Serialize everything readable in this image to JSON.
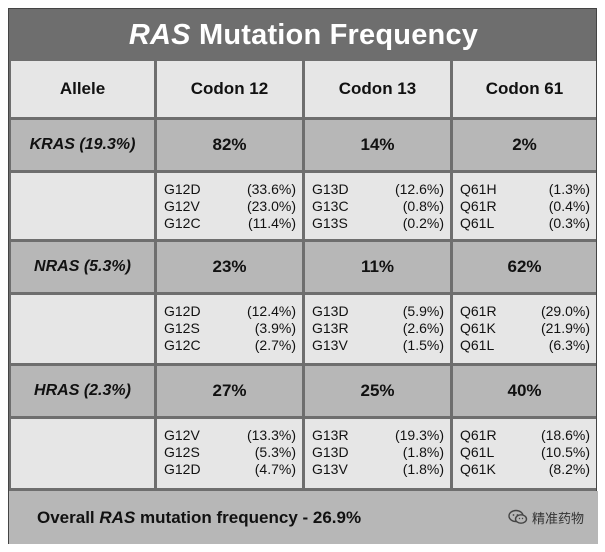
{
  "title": {
    "gene": "RAS",
    "rest": "Mutation Frequency"
  },
  "header": {
    "allele": "Allele",
    "codon12": "Codon 12",
    "codon13": "Codon 13",
    "codon61": "Codon  61"
  },
  "genes": [
    {
      "label": "KRAS (19.3%)",
      "codon12": {
        "pct": "82%",
        "mutations": [
          {
            "name": "G12D",
            "freq": "(33.6%)"
          },
          {
            "name": "G12V",
            "freq": "(23.0%)"
          },
          {
            "name": "G12C",
            "freq": "(11.4%)"
          }
        ]
      },
      "codon13": {
        "pct": "14%",
        "mutations": [
          {
            "name": "G13D",
            "freq": "(12.6%)"
          },
          {
            "name": "G13C",
            "freq": "(0.8%)"
          },
          {
            "name": "G13S",
            "freq": "(0.2%)"
          }
        ]
      },
      "codon61": {
        "pct": "2%",
        "mutations": [
          {
            "name": "Q61H",
            "freq": "(1.3%)"
          },
          {
            "name": "Q61R",
            "freq": "(0.4%)"
          },
          {
            "name": "Q61L",
            "freq": "(0.3%)"
          }
        ]
      }
    },
    {
      "label": "NRAS (5.3%)",
      "codon12": {
        "pct": "23%",
        "mutations": [
          {
            "name": "G12D",
            "freq": "(12.4%)"
          },
          {
            "name": "G12S",
            "freq": "(3.9%)"
          },
          {
            "name": "G12C",
            "freq": "(2.7%)"
          }
        ]
      },
      "codon13": {
        "pct": "11%",
        "mutations": [
          {
            "name": "G13D",
            "freq": "(5.9%)"
          },
          {
            "name": "G13R",
            "freq": "(2.6%)"
          },
          {
            "name": "G13V",
            "freq": "(1.5%)"
          }
        ]
      },
      "codon61": {
        "pct": "62%",
        "mutations": [
          {
            "name": "Q61R",
            "freq": "(29.0%)"
          },
          {
            "name": "Q61K",
            "freq": "(21.9%)"
          },
          {
            "name": "Q61L",
            "freq": "(6.3%)"
          }
        ]
      }
    },
    {
      "label": "HRAS (2.3%)",
      "codon12": {
        "pct": "27%",
        "mutations": [
          {
            "name": "G12V",
            "freq": "(13.3%)"
          },
          {
            "name": "G12S",
            "freq": "(5.3%)"
          },
          {
            "name": "G12D",
            "freq": "(4.7%)"
          }
        ]
      },
      "codon13": {
        "pct": "25%",
        "mutations": [
          {
            "name": "G13R",
            "freq": "(19.3%)"
          },
          {
            "name": "G13D",
            "freq": "(1.8%)"
          },
          {
            "name": "G13V",
            "freq": "(1.8%)"
          }
        ]
      },
      "codon61": {
        "pct": "40%",
        "mutations": [
          {
            "name": "Q61R",
            "freq": "(18.6%)"
          },
          {
            "name": "Q61L",
            "freq": "(10.5%)"
          },
          {
            "name": "Q61K",
            "freq": "(8.2%)"
          }
        ]
      }
    }
  ],
  "footer": {
    "prefix": "Overall",
    "gene": "RAS",
    "suffix": "mutation frequency - 26.9%"
  },
  "watermark": {
    "icon": "wechat-icon",
    "text": "精准药物"
  }
}
